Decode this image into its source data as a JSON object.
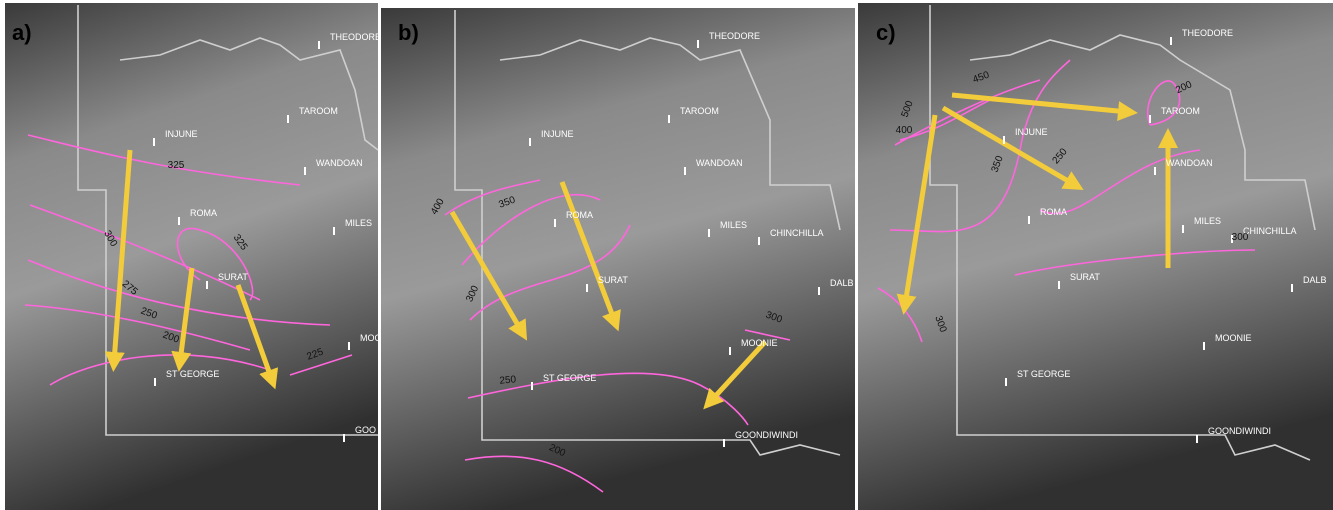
{
  "panels": [
    {
      "label": "a)",
      "towns": [
        "THEODORE",
        "TAROOM",
        "INJUNE",
        "WANDOAN",
        "ROMA",
        "MILES",
        "SURAT",
        "MOO",
        "ST GEORGE",
        "GOO"
      ],
      "contour_labels": [
        "325",
        "300",
        "325",
        "275",
        "250",
        "200",
        "225"
      ]
    },
    {
      "label": "b)",
      "towns": [
        "THEODORE",
        "TAROOM",
        "INJUNE",
        "WANDOAN",
        "ROMA",
        "MILES",
        "CHINCHILLA",
        "SURAT",
        "DALB",
        "MOONIE",
        "ST GEORGE",
        "GOONDIWINDI"
      ],
      "contour_labels": [
        "400",
        "350",
        "300",
        "300",
        "250",
        "200"
      ]
    },
    {
      "label": "c)",
      "towns": [
        "THEODORE",
        "TAROOM",
        "INJUNE",
        "WANDOAN",
        "ROMA",
        "MILES",
        "CHINCHILLA",
        "SURAT",
        "DALB",
        "MOONIE",
        "ST GEORGE",
        "GOONDIWINDI"
      ],
      "contour_labels": [
        "450",
        "500",
        "400",
        "350",
        "250",
        "200",
        "300",
        "300"
      ]
    }
  ]
}
